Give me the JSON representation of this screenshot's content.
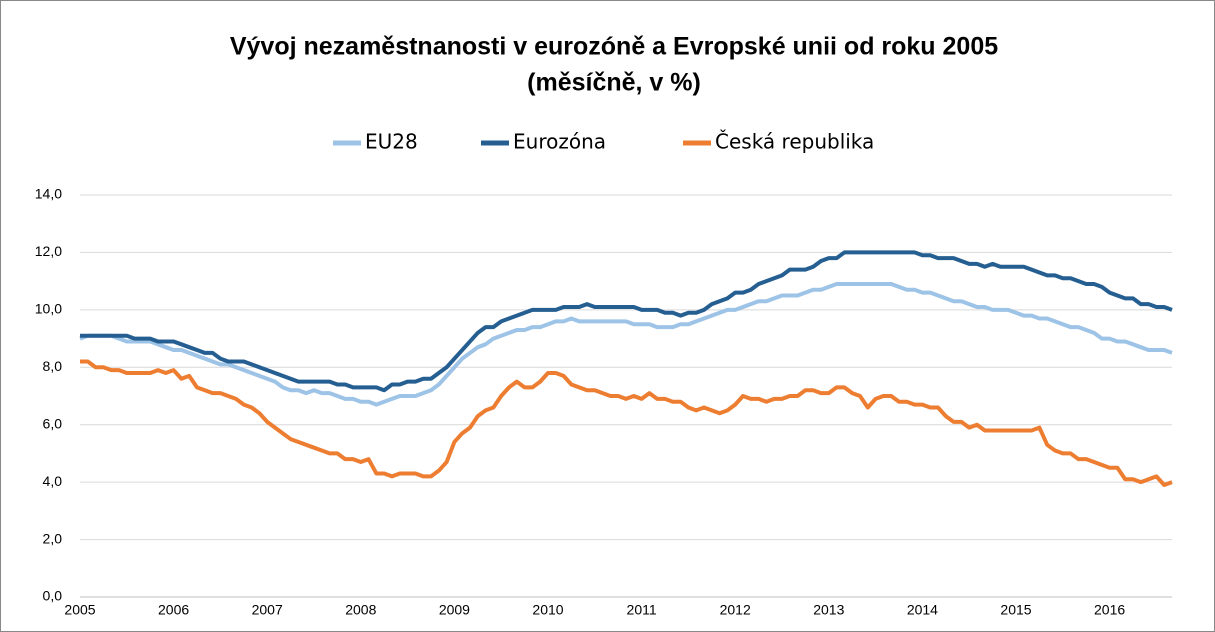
{
  "chart_data": {
    "type": "line",
    "title": "Vývoj nezaměstnanosti v eurozóně a Evropské unii od roku 2005",
    "subtitle": "(měsíčně, v %)",
    "categories": [
      "2005",
      null,
      null,
      null,
      null,
      null,
      null,
      null,
      null,
      null,
      null,
      null,
      "2006",
      null,
      null,
      null,
      null,
      null,
      null,
      null,
      null,
      null,
      null,
      null,
      "2007",
      null,
      null,
      null,
      null,
      null,
      null,
      null,
      null,
      null,
      null,
      null,
      "2008",
      null,
      null,
      null,
      null,
      null,
      null,
      null,
      null,
      null,
      null,
      null,
      "2009",
      null,
      null,
      null,
      null,
      null,
      null,
      null,
      null,
      null,
      null,
      null,
      "2010",
      null,
      null,
      null,
      null,
      null,
      null,
      null,
      null,
      null,
      null,
      null,
      "2011",
      null,
      null,
      null,
      null,
      null,
      null,
      null,
      null,
      null,
      null,
      null,
      "2012",
      null,
      null,
      null,
      null,
      null,
      null,
      null,
      null,
      null,
      null,
      null,
      "2013",
      null,
      null,
      null,
      null,
      null,
      null,
      null,
      null,
      null,
      null,
      null,
      "2014",
      null,
      null,
      null,
      null,
      null,
      null,
      null,
      null,
      null,
      null,
      null,
      "2015",
      null,
      null,
      null,
      null,
      null,
      null,
      null,
      null,
      null,
      null,
      null,
      "2016",
      null,
      null,
      null,
      null,
      null,
      null,
      null,
      null
    ],
    "series": [
      {
        "name": "EU28",
        "color": "#9dc3e6",
        "values": [
          9.0,
          9.1,
          9.1,
          9.1,
          9.1,
          9.0,
          8.9,
          8.9,
          8.9,
          8.9,
          8.8,
          8.7,
          8.6,
          8.6,
          8.5,
          8.4,
          8.3,
          8.2,
          8.1,
          8.1,
          8.0,
          7.9,
          7.8,
          7.7,
          7.6,
          7.5,
          7.3,
          7.2,
          7.2,
          7.1,
          7.2,
          7.1,
          7.1,
          7.0,
          6.9,
          6.9,
          6.8,
          6.8,
          6.7,
          6.8,
          6.9,
          7.0,
          7.0,
          7.0,
          7.1,
          7.2,
          7.4,
          7.7,
          8.0,
          8.3,
          8.5,
          8.7,
          8.8,
          9.0,
          9.1,
          9.2,
          9.3,
          9.3,
          9.4,
          9.4,
          9.5,
          9.6,
          9.6,
          9.7,
          9.6,
          9.6,
          9.6,
          9.6,
          9.6,
          9.6,
          9.6,
          9.5,
          9.5,
          9.5,
          9.4,
          9.4,
          9.4,
          9.5,
          9.5,
          9.6,
          9.7,
          9.8,
          9.9,
          10.0,
          10.0,
          10.1,
          10.2,
          10.3,
          10.3,
          10.4,
          10.5,
          10.5,
          10.5,
          10.6,
          10.7,
          10.7,
          10.8,
          10.9,
          10.9,
          10.9,
          10.9,
          10.9,
          10.9,
          10.9,
          10.9,
          10.8,
          10.7,
          10.7,
          10.6,
          10.6,
          10.5,
          10.4,
          10.3,
          10.3,
          10.2,
          10.1,
          10.1,
          10.0,
          10.0,
          10.0,
          9.9,
          9.8,
          9.8,
          9.7,
          9.7,
          9.6,
          9.5,
          9.4,
          9.4,
          9.3,
          9.2,
          9.0,
          9.0,
          8.9,
          8.9,
          8.8,
          8.7,
          8.6,
          8.6,
          8.6,
          8.5
        ]
      },
      {
        "name": "Eurozóna",
        "color": "#255e91",
        "values": [
          9.1,
          9.1,
          9.1,
          9.1,
          9.1,
          9.1,
          9.1,
          9.0,
          9.0,
          9.0,
          8.9,
          8.9,
          8.9,
          8.8,
          8.7,
          8.6,
          8.5,
          8.5,
          8.3,
          8.2,
          8.2,
          8.2,
          8.1,
          8.0,
          7.9,
          7.8,
          7.7,
          7.6,
          7.5,
          7.5,
          7.5,
          7.5,
          7.5,
          7.4,
          7.4,
          7.3,
          7.3,
          7.3,
          7.3,
          7.2,
          7.4,
          7.4,
          7.5,
          7.5,
          7.6,
          7.6,
          7.8,
          8.0,
          8.3,
          8.6,
          8.9,
          9.2,
          9.4,
          9.4,
          9.6,
          9.7,
          9.8,
          9.9,
          10.0,
          10.0,
          10.0,
          10.0,
          10.1,
          10.1,
          10.1,
          10.2,
          10.1,
          10.1,
          10.1,
          10.1,
          10.1,
          10.1,
          10.0,
          10.0,
          10.0,
          9.9,
          9.9,
          9.8,
          9.9,
          9.9,
          10.0,
          10.2,
          10.3,
          10.4,
          10.6,
          10.6,
          10.7,
          10.9,
          11.0,
          11.1,
          11.2,
          11.4,
          11.4,
          11.4,
          11.5,
          11.7,
          11.8,
          11.8,
          12.0,
          12.0,
          12.0,
          12.0,
          12.0,
          12.0,
          12.0,
          12.0,
          12.0,
          12.0,
          11.9,
          11.9,
          11.8,
          11.8,
          11.8,
          11.7,
          11.6,
          11.6,
          11.5,
          11.6,
          11.5,
          11.5,
          11.5,
          11.5,
          11.4,
          11.3,
          11.2,
          11.2,
          11.1,
          11.1,
          11.0,
          10.9,
          10.9,
          10.8,
          10.6,
          10.5,
          10.4,
          10.4,
          10.2,
          10.2,
          10.1,
          10.1,
          10.0
        ]
      },
      {
        "name": "Česká republika",
        "color": "#ed7d31",
        "values": [
          8.2,
          8.2,
          8.0,
          8.0,
          7.9,
          7.9,
          7.8,
          7.8,
          7.8,
          7.8,
          7.9,
          7.8,
          7.9,
          7.6,
          7.7,
          7.3,
          7.2,
          7.1,
          7.1,
          7.0,
          6.9,
          6.7,
          6.6,
          6.4,
          6.1,
          5.9,
          5.7,
          5.5,
          5.4,
          5.3,
          5.2,
          5.1,
          5.0,
          5.0,
          4.8,
          4.8,
          4.7,
          4.8,
          4.3,
          4.3,
          4.2,
          4.3,
          4.3,
          4.3,
          4.2,
          4.2,
          4.4,
          4.7,
          5.4,
          5.7,
          5.9,
          6.3,
          6.5,
          6.6,
          7.0,
          7.3,
          7.5,
          7.3,
          7.3,
          7.5,
          7.8,
          7.8,
          7.7,
          7.4,
          7.3,
          7.2,
          7.2,
          7.1,
          7.0,
          7.0,
          6.9,
          7.0,
          6.9,
          7.1,
          6.9,
          6.9,
          6.8,
          6.8,
          6.6,
          6.5,
          6.6,
          6.5,
          6.4,
          6.5,
          6.7,
          7.0,
          6.9,
          6.9,
          6.8,
          6.9,
          6.9,
          7.0,
          7.0,
          7.2,
          7.2,
          7.1,
          7.1,
          7.3,
          7.3,
          7.1,
          7.0,
          6.6,
          6.9,
          7.0,
          7.0,
          6.8,
          6.8,
          6.7,
          6.7,
          6.6,
          6.6,
          6.3,
          6.1,
          6.1,
          5.9,
          6.0,
          5.8,
          5.8,
          5.8,
          5.8,
          5.8,
          5.8,
          5.8,
          5.9,
          5.3,
          5.1,
          5.0,
          5.0,
          4.8,
          4.8,
          4.7,
          4.6,
          4.5,
          4.5,
          4.1,
          4.1,
          4.0,
          4.1,
          4.2,
          3.9,
          4.0
        ]
      }
    ],
    "ylim": [
      0,
      14
    ],
    "yticks": [
      {
        "value": 0,
        "label": "0,0"
      },
      {
        "value": 2,
        "label": "2,0"
      },
      {
        "value": 4,
        "label": "4,0"
      },
      {
        "value": 6,
        "label": "6,0"
      },
      {
        "value": 8,
        "label": "8,0"
      },
      {
        "value": 10,
        "label": "10,0"
      },
      {
        "value": 12,
        "label": "12,0"
      },
      {
        "value": 14,
        "label": "14,0"
      }
    ],
    "grid": true
  }
}
